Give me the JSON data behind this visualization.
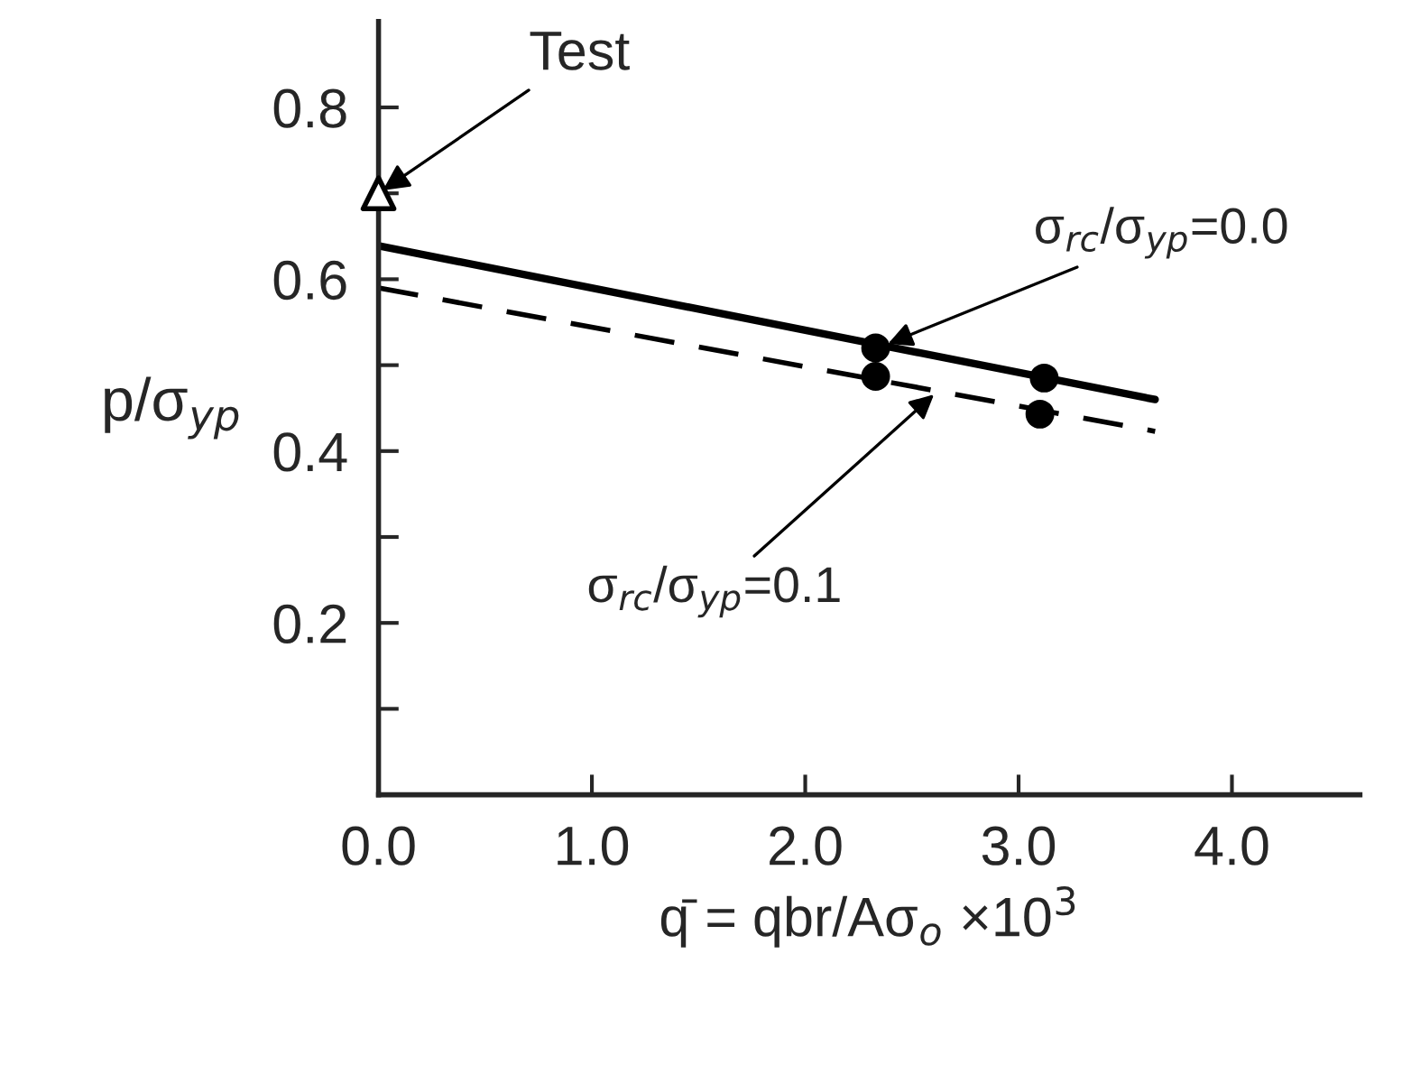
{
  "chart_data": {
    "type": "line",
    "xlabel": "q̄ = qbr/Aσ$_{o}$ ×10$^{3}$",
    "ylabel": "p/σ$_{yp}$",
    "xlim": [
      0,
      4.6
    ],
    "ylim": [
      0,
      0.9
    ],
    "xticks": [
      {
        "value": 0,
        "label": "0.0"
      },
      {
        "value": 1,
        "label": "1.0"
      },
      {
        "value": 2,
        "label": "2.0"
      },
      {
        "value": 3,
        "label": "3.0"
      },
      {
        "value": 4,
        "label": "4.0"
      }
    ],
    "yticks": [
      {
        "value": 0.1,
        "label": null
      },
      0.2,
      {
        "value": 0.3,
        "label": null
      },
      0.4,
      {
        "value": 0.5,
        "label": null
      },
      0.6,
      {
        "value": 0.7,
        "label": null
      },
      0.8
    ],
    "grid": false,
    "series": [
      {
        "name": "σ$_{rc}$/σ$_{yp}$=0.0",
        "color": "#000000",
        "line_style": "solid",
        "marker": "none",
        "x": [
          0,
          3.64
        ],
        "values": [
          0.639,
          0.46
        ]
      },
      {
        "name": "σ$_{rc}$/σ$_{yp}$=0.1",
        "color": "#000000",
        "line_style": "dashed",
        "marker": "none",
        "x": [
          0,
          3.64
        ],
        "values": [
          0.59,
          0.423
        ]
      },
      {
        "type": "scatter",
        "color": "#000000",
        "marker": "circle",
        "x": [
          2.33,
          3.12
        ],
        "values": [
          0.52,
          0.485
        ]
      },
      {
        "type": "scatter",
        "color": "#000000",
        "marker": "circle",
        "x": [
          2.33,
          3.1
        ],
        "values": [
          0.487,
          0.443
        ]
      },
      {
        "type": "scatter",
        "color": "#000000",
        "marker": "triangle",
        "x": [
          0
        ],
        "values": [
          0.7
        ]
      }
    ],
    "annotations": [
      {
        "text": "Test",
        "x": 0,
        "y": 0.7
      }
    ]
  }
}
